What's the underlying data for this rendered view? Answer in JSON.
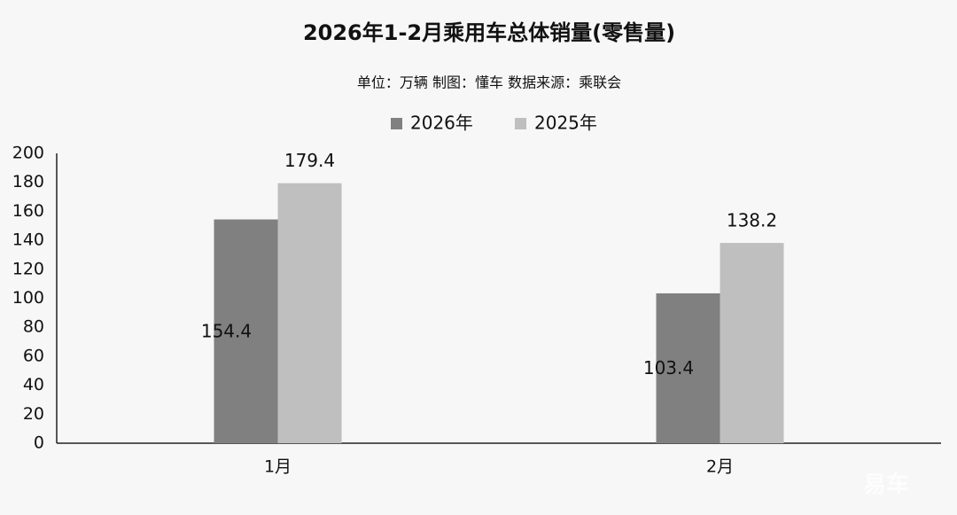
{
  "chart_data": {
    "type": "bar",
    "title": "2026年1-2月乘用车总体销量(零售量)",
    "subtitle": "单位：万辆 制图：懂车  数据来源：乘联会",
    "categories": [
      "1月",
      "2月"
    ],
    "series": [
      {
        "name": "2026年",
        "color": "#808080",
        "values": [
          154.4,
          103.4
        ]
      },
      {
        "name": "2025年",
        "color": "#bfbfbf",
        "values": [
          179.4,
          138.2
        ]
      }
    ],
    "ylim": [
      0,
      200
    ],
    "yticks": [
      0,
      20,
      40,
      60,
      80,
      100,
      120,
      140,
      160,
      180,
      200
    ],
    "grid": false,
    "legend": "top",
    "watermark": "易车"
  }
}
